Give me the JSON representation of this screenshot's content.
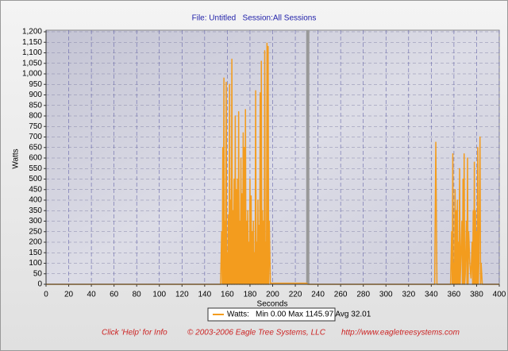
{
  "chart_data": {
    "type": "line",
    "title": "File: Untitled   Session:All Sessions",
    "xlabel": "Seconds",
    "ylabel": "Watts",
    "xlim": [
      0,
      400
    ],
    "ylim": [
      0,
      1200
    ],
    "xticks": [
      0,
      20,
      40,
      60,
      80,
      100,
      120,
      140,
      160,
      180,
      200,
      220,
      240,
      260,
      280,
      300,
      320,
      340,
      360,
      380,
      400
    ],
    "yticks": [
      0,
      50,
      100,
      150,
      200,
      250,
      300,
      350,
      400,
      450,
      500,
      550,
      600,
      650,
      700,
      750,
      800,
      850,
      900,
      950,
      {
        "value": 1000,
        "label": "1,000"
      },
      {
        "value": 1050,
        "label": "1,050"
      },
      {
        "value": 1100,
        "label": "1,100"
      },
      {
        "value": 1150,
        "label": "1,150"
      },
      {
        "value": 1200,
        "label": "1,200"
      }
    ],
    "grid": true,
    "cursor": 231,
    "series": [
      {
        "name": "Watts:",
        "color": "#f39c1e",
        "x": [
          0,
          154,
          155,
          155.5,
          156,
          156.5,
          157,
          157.5,
          158,
          158.5,
          159,
          159.5,
          160,
          160.5,
          161,
          161.5,
          162,
          162.5,
          163,
          163.5,
          164,
          164.5,
          165,
          165.5,
          166,
          166.5,
          167,
          167.5,
          168,
          168.5,
          169,
          169.5,
          170,
          170.5,
          171,
          171.5,
          172,
          172.5,
          173,
          173.5,
          174,
          174.5,
          175,
          175.5,
          176,
          176.5,
          177,
          177.5,
          178,
          178.5,
          179,
          179.5,
          180,
          180.5,
          181,
          181.5,
          182,
          182.5,
          183,
          183.5,
          184,
          184.5,
          185,
          185.5,
          186,
          186.5,
          187,
          187.5,
          188,
          188.5,
          189,
          189.5,
          190,
          190.5,
          191,
          191.5,
          192,
          192.5,
          193,
          193.5,
          194,
          194.5,
          195,
          195.5,
          196,
          196.5,
          197,
          198,
          230,
          231,
          343,
          344,
          345,
          357,
          358,
          358.5,
          359,
          359.5,
          360,
          360.5,
          361,
          361.5,
          362,
          362.5,
          363,
          363.5,
          364,
          364.5,
          365,
          365.5,
          366,
          367,
          367.5,
          368,
          368.5,
          369,
          369.5,
          370,
          371,
          371.5,
          372,
          372.5,
          373,
          374,
          375,
          376,
          376.5,
          377,
          377.5,
          378,
          378.5,
          379,
          379.5,
          380,
          380.5,
          381,
          381.5,
          382,
          383,
          383.5,
          384,
          385,
          400
        ],
        "values": [
          0,
          0,
          250,
          0,
          650,
          0,
          980,
          0,
          300,
          0,
          960,
          0,
          150,
          0,
          330,
          0,
          950,
          0,
          400,
          0,
          1070,
          0,
          350,
          0,
          500,
          0,
          800,
          0,
          450,
          0,
          500,
          0,
          820,
          0,
          300,
          0,
          600,
          0,
          430,
          0,
          720,
          0,
          650,
          0,
          830,
          0,
          300,
          0,
          350,
          0,
          200,
          0,
          500,
          0,
          420,
          0,
          250,
          0,
          300,
          0,
          150,
          0,
          920,
          0,
          200,
          0,
          400,
          0,
          280,
          0,
          910,
          0,
          1060,
          0,
          350,
          0,
          300,
          0,
          1110,
          0,
          200,
          0,
          1145.97,
          0,
          1130,
          0,
          300,
          5,
          5,
          0,
          0,
          675,
          0,
          0,
          250,
          0,
          620,
          0,
          100,
          0,
          450,
          0,
          350,
          0,
          400,
          0,
          200,
          0,
          550,
          0,
          100,
          300,
          0,
          500,
          0,
          620,
          0,
          50,
          300,
          0,
          600,
          0,
          250,
          100,
          30,
          200,
          0,
          350,
          0,
          580,
          0,
          350,
          0,
          250,
          0,
          650,
          0,
          100,
          700,
          0,
          100,
          0,
          0
        ]
      }
    ],
    "legend_stats": "Min 0.00 Max 1145.97 Avg 32.01",
    "footer": [
      "Click 'Help' for Info",
      "© 2003-2006 Eagle Tree Systems, LLC",
      "http://www.eagletreesystems.com"
    ]
  }
}
